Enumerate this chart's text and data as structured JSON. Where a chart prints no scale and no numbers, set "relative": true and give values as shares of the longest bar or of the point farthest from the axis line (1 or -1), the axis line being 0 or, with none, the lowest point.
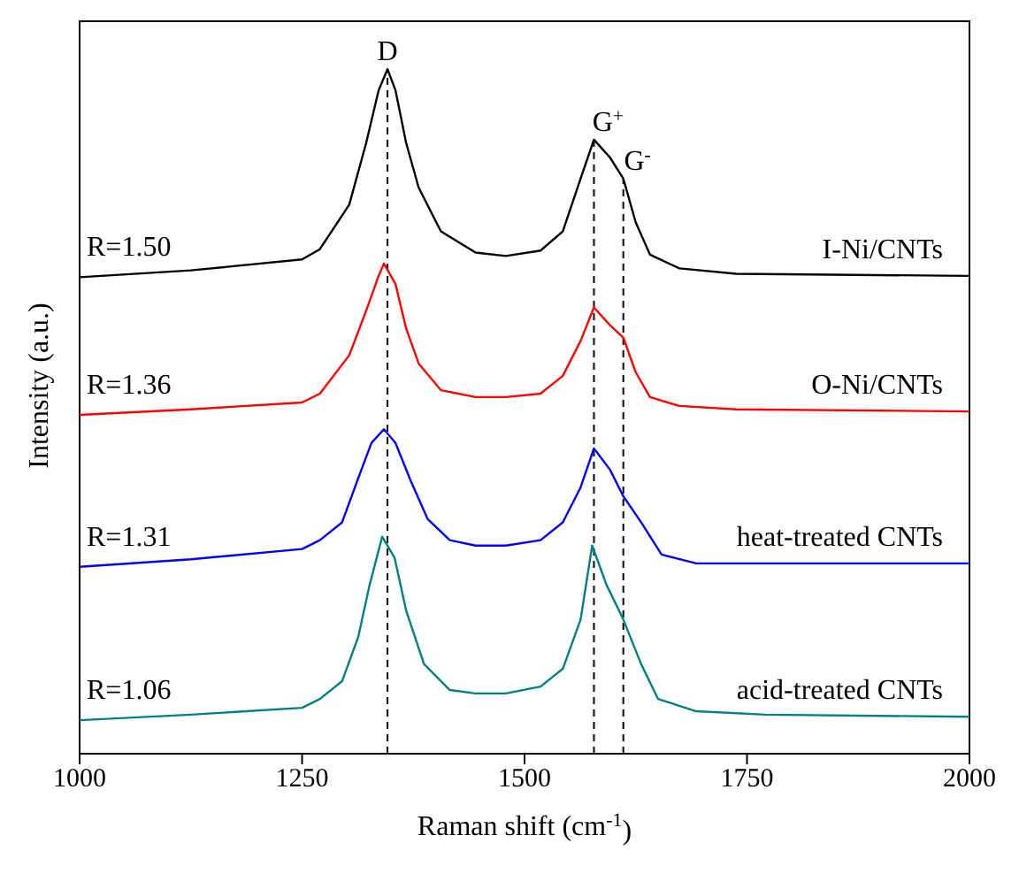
{
  "chart_data": {
    "type": "line",
    "relative": true,
    "xlabel": "Raman shift (cm$^{-1}$)",
    "ylabel": "Intensity (a.u.)",
    "xlim": [
      1000,
      2000
    ],
    "xticks": [
      1000,
      1250,
      1500,
      1750,
      2000
    ],
    "tick_labels": "x",
    "marker": "none",
    "line_style": "solid",
    "series": [
      {
        "name": "I-Ni/CNTs",
        "color": "#000000",
        "x": [
          1000,
          1125,
          1250,
          1270,
          1303,
          1322,
          1336,
          1346,
          1355,
          1367,
          1381,
          1406,
          1445,
          1479,
          1518,
          1543,
          1563,
          1578,
          1596,
          1611,
          1625,
          1641,
          1674,
          1738,
          2000
        ],
        "values": [
          0.696,
          0.706,
          0.722,
          0.737,
          0.802,
          0.892,
          0.969,
          1.0,
          0.969,
          0.892,
          0.827,
          0.763,
          0.732,
          0.727,
          0.735,
          0.763,
          0.84,
          0.897,
          0.871,
          0.84,
          0.776,
          0.729,
          0.709,
          0.701,
          0.698
        ]
      },
      {
        "name": "O-Ni/CNTs",
        "color": "#ff0000",
        "x": [
          1000,
          1125,
          1250,
          1270,
          1303,
          1322,
          1336,
          1342,
          1355,
          1367,
          1381,
          1406,
          1445,
          1479,
          1518,
          1543,
          1563,
          1578,
          1596,
          1611,
          1625,
          1641,
          1674,
          1738,
          2000
        ],
        "values": [
          0.495,
          0.503,
          0.513,
          0.526,
          0.582,
          0.647,
          0.698,
          0.716,
          0.686,
          0.621,
          0.57,
          0.531,
          0.521,
          0.521,
          0.526,
          0.552,
          0.603,
          0.652,
          0.626,
          0.608,
          0.557,
          0.521,
          0.508,
          0.503,
          0.5
        ]
      },
      {
        "name": "heat-treated CNTs",
        "color": "#0000ff",
        "x": [
          1000,
          1125,
          1250,
          1270,
          1295,
          1313,
          1328,
          1342,
          1355,
          1371,
          1391,
          1416,
          1445,
          1479,
          1518,
          1543,
          1563,
          1578,
          1596,
          1611,
          1631,
          1654,
          1693,
          2000
        ],
        "values": [
          0.273,
          0.284,
          0.299,
          0.312,
          0.338,
          0.402,
          0.454,
          0.474,
          0.454,
          0.402,
          0.343,
          0.312,
          0.304,
          0.304,
          0.312,
          0.338,
          0.389,
          0.446,
          0.415,
          0.376,
          0.338,
          0.291,
          0.278,
          0.278
        ]
      },
      {
        "name": "acid-treated CNTs",
        "color": "#008080",
        "x": [
          1000,
          1125,
          1250,
          1270,
          1295,
          1313,
          1326,
          1340,
          1354,
          1367,
          1387,
          1416,
          1445,
          1479,
          1518,
          1543,
          1563,
          1576,
          1592,
          1611,
          1631,
          1650,
          1693,
          1771,
          2000
        ],
        "values": [
          0.049,
          0.057,
          0.067,
          0.08,
          0.106,
          0.17,
          0.247,
          0.317,
          0.286,
          0.209,
          0.131,
          0.093,
          0.088,
          0.088,
          0.098,
          0.124,
          0.196,
          0.304,
          0.247,
          0.196,
          0.131,
          0.08,
          0.062,
          0.057,
          0.054
        ]
      }
    ],
    "ref_lines": [
      {
        "axis": "x",
        "value": 1346,
        "label": "D",
        "line_style": "dashed",
        "color": "#000000"
      },
      {
        "axis": "x",
        "value": 1578,
        "label": "G$^{+}$",
        "line_style": "dashed",
        "color": "#000000"
      },
      {
        "axis": "x",
        "value": 1611,
        "label": "G$^{-}$",
        "line_style": "dashed",
        "color": "#000000"
      }
    ],
    "annotations": [
      "R=1.50",
      "R=1.36",
      "R=1.31",
      "R=1.06"
    ]
  }
}
